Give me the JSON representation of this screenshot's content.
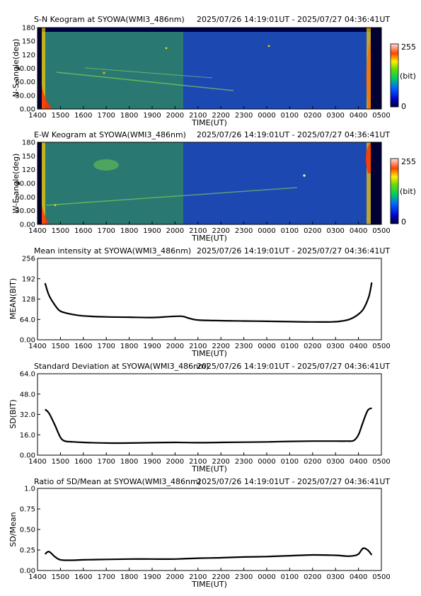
{
  "time_range": "2025/07/26 14:19:01UT - 2025/07/27 04:36:41UT",
  "x_ticks": [
    "1400",
    "1500",
    "1600",
    "1700",
    "1800",
    "1900",
    "2000",
    "2100",
    "2200",
    "2300",
    "0000",
    "0100",
    "0200",
    "0300",
    "0400",
    "0500"
  ],
  "xlabel": "TIME(UT)",
  "colorbar": {
    "max_label": "255",
    "unit_label": "(bit)",
    "min_label": "0"
  },
  "chart_data": [
    {
      "id": "sn",
      "type": "heatmap",
      "title": "S-N Keogram at SYOWA(WMI3_486nm)",
      "ylabel": "N-S angle(deg)",
      "yticks": [
        "0.00",
        "30.00",
        "60.00",
        "90.00",
        "120",
        "150",
        "180"
      ],
      "ylim": [
        0,
        180
      ],
      "colormap": "rainbow",
      "value_range": [
        0,
        255
      ],
      "data_start_hour": 14.32,
      "data_end_hour": 28.61
    },
    {
      "id": "ew",
      "type": "heatmap",
      "title": "E-W Keogram at SYOWA(WMI3_486nm)",
      "ylabel": "W-E angle(deg)",
      "yticks": [
        "0.00",
        "30.00",
        "60.00",
        "90.00",
        "120",
        "150",
        "180"
      ],
      "ylim": [
        0,
        180
      ],
      "colormap": "rainbow",
      "value_range": [
        0,
        255
      ],
      "data_start_hour": 14.32,
      "data_end_hour": 28.61
    },
    {
      "id": "mean",
      "type": "line",
      "title": "Mean intensity at SYOWA(WMI3_486nm)",
      "ylabel": "MEAN(BIT)",
      "yticks": [
        "0.00",
        "64.0",
        "128",
        "192",
        "256"
      ],
      "ylim": [
        0,
        256
      ],
      "x": [
        14.33,
        14.5,
        14.75,
        15.0,
        15.5,
        16.0,
        17.0,
        18.0,
        19.0,
        19.8,
        20.3,
        20.6,
        21.0,
        22.0,
        23.0,
        24.0,
        25.0,
        26.0,
        26.8,
        27.2,
        27.6,
        27.9,
        28.2,
        28.45,
        28.58
      ],
      "y": [
        178,
        140,
        110,
        90,
        80,
        75,
        72,
        71,
        70,
        73,
        74,
        68,
        62,
        60,
        59,
        58,
        57,
        56,
        56,
        58,
        64,
        75,
        95,
        135,
        180
      ]
    },
    {
      "id": "sd",
      "type": "line",
      "title": "Standard Deviation at SYOWA(WMI3_486nm)",
      "ylabel": "SD(BIT)",
      "yticks": [
        "0.00",
        "16.0",
        "32.0",
        "48.0",
        "64.0"
      ],
      "ylim": [
        0,
        64
      ],
      "x": [
        14.33,
        14.5,
        14.75,
        15.0,
        15.2,
        15.5,
        16.0,
        17.0,
        18.0,
        19.0,
        20.0,
        21.0,
        22.0,
        23.0,
        24.0,
        25.0,
        26.0,
        27.0,
        27.5,
        27.8,
        28.0,
        28.2,
        28.4,
        28.58
      ],
      "y": [
        36,
        33,
        24,
        14,
        11,
        10.5,
        10,
        9.5,
        9.5,
        9.8,
        10,
        9.8,
        10,
        10.2,
        10.4,
        10.8,
        11,
        11,
        11,
        11.5,
        16,
        26,
        35,
        37
      ]
    },
    {
      "id": "ratio",
      "type": "line",
      "title": "Ratio of SD/Mean at SYOWA(WMI3_486nm)",
      "ylabel": "SD/Mean",
      "yticks": [
        "0.00",
        "0.25",
        "0.50",
        "0.75",
        "1.0"
      ],
      "ylim": [
        0,
        1.0
      ],
      "x": [
        14.33,
        14.5,
        14.75,
        15.0,
        15.5,
        16.0,
        17.0,
        18.0,
        19.0,
        20.0,
        21.0,
        22.0,
        23.0,
        24.0,
        25.0,
        26.0,
        27.0,
        27.5,
        27.8,
        28.0,
        28.2,
        28.4,
        28.58
      ],
      "y": [
        0.2,
        0.23,
        0.17,
        0.13,
        0.125,
        0.13,
        0.135,
        0.14,
        0.14,
        0.14,
        0.15,
        0.155,
        0.165,
        0.17,
        0.18,
        0.19,
        0.185,
        0.175,
        0.18,
        0.2,
        0.27,
        0.25,
        0.19
      ]
    }
  ]
}
